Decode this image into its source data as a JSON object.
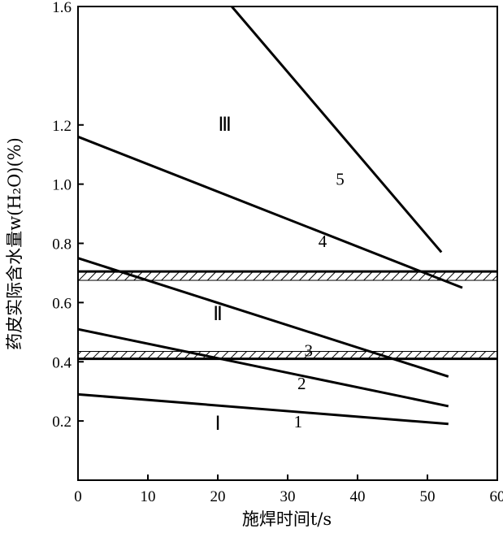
{
  "chart_data": {
    "type": "line",
    "xlabel": "施焊时间t/s",
    "ylabel": "药皮实际含水量w(H₂O)(%)",
    "xlim": [
      0,
      60
    ],
    "ylim": [
      0,
      1.6
    ],
    "x_ticks": [
      "0",
      "10",
      "20",
      "30",
      "40",
      "50",
      "60"
    ],
    "y_ticks": [
      "0.2",
      "0.4",
      "0.6",
      "0.8",
      "1.0",
      "1.2",
      "1.6"
    ],
    "series": [
      {
        "name": "1",
        "x": [
          0,
          53
        ],
        "y": [
          0.29,
          0.19
        ]
      },
      {
        "name": "2",
        "x": [
          0,
          53
        ],
        "y": [
          0.51,
          0.25
        ]
      },
      {
        "name": "3",
        "x": [
          0,
          53
        ],
        "y": [
          0.75,
          0.35
        ]
      },
      {
        "name": "4",
        "x": [
          0,
          55
        ],
        "y": [
          1.16,
          0.65
        ]
      },
      {
        "name": "5",
        "x": [
          22,
          52
        ],
        "y": [
          1.6,
          0.77
        ]
      }
    ],
    "boundaries": [
      {
        "y": 0.41,
        "hatch_from": 0.41,
        "hatch_to": 0.435
      },
      {
        "y": 0.705,
        "hatch_from": 0.675,
        "hatch_to": 0.705
      }
    ],
    "regions": [
      {
        "label": "Ⅰ",
        "x": 20,
        "y": 0.17
      },
      {
        "label": "Ⅱ",
        "x": 20,
        "y": 0.54
      },
      {
        "label": "Ⅲ",
        "x": 21,
        "y": 1.18
      }
    ],
    "line_labels": [
      {
        "label": "1",
        "x": 31.5,
        "y": 0.2
      },
      {
        "label": "2",
        "x": 32,
        "y": 0.33
      },
      {
        "label": "3",
        "x": 33,
        "y": 0.44
      },
      {
        "label": "4",
        "x": 35,
        "y": 0.81
      },
      {
        "label": "5",
        "x": 37.5,
        "y": 1.02
      }
    ],
    "grid": false
  }
}
